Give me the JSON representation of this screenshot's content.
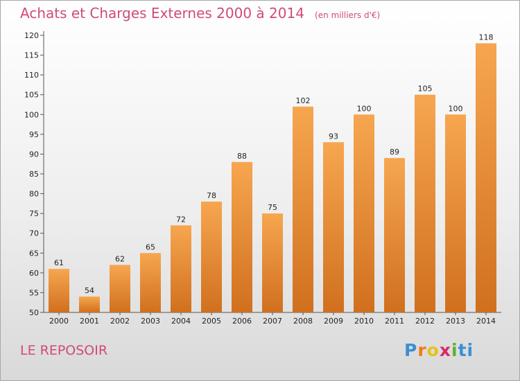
{
  "chart_data": {
    "type": "bar",
    "title": "Achats et Charges Externes 2000 à 2014",
    "subtitle": "(en milliers d'€)",
    "categories": [
      "2000",
      "2001",
      "2002",
      "2003",
      "2004",
      "2005",
      "2006",
      "2007",
      "2008",
      "2009",
      "2010",
      "2011",
      "2012",
      "2013",
      "2014"
    ],
    "values": [
      61,
      54,
      62,
      65,
      72,
      78,
      88,
      75,
      102,
      93,
      100,
      89,
      105,
      100,
      118
    ],
    "ylim": [
      50,
      120
    ],
    "yticks": [
      50,
      55,
      60,
      65,
      70,
      75,
      80,
      85,
      90,
      95,
      100,
      105,
      110,
      115,
      120
    ],
    "grid": false,
    "colors": {
      "bar_top": "#f7a650",
      "bar_bottom": "#d0701e",
      "title": "#d04a7a"
    }
  },
  "commune": "LE REPOSOIR",
  "logo": {
    "letters": [
      "P",
      "r",
      "o",
      "x",
      "i",
      "t",
      "i"
    ]
  }
}
